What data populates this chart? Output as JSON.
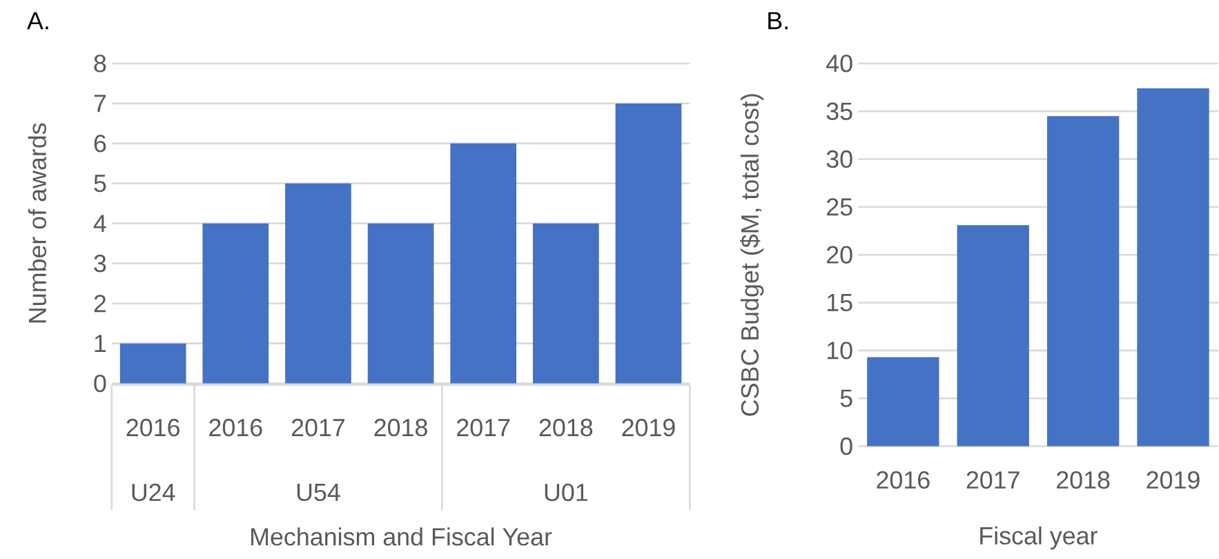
{
  "chart_data": [
    {
      "type": "bar",
      "title": "A.",
      "xlabel": "Mechanism and Fiscal Year",
      "ylabel": "Number of awards",
      "categories": [
        "2016",
        "2016",
        "2017",
        "2018",
        "2017",
        "2018",
        "2019"
      ],
      "values": [
        1,
        4,
        5,
        4,
        6,
        4,
        7
      ],
      "color": "#4472c4",
      "ylim": [
        0,
        8
      ],
      "yticks": [
        0,
        1,
        2,
        3,
        4,
        5,
        6,
        7,
        8
      ],
      "grid": "y",
      "annotations": [
        "U24",
        "U54",
        "U01"
      ]
    },
    {
      "type": "bar",
      "title": "B.",
      "xlabel": "Fiscal year",
      "ylabel": "CSBC Budget ($M, total cost)",
      "categories": [
        "2016",
        "2017",
        "2018",
        "2019"
      ],
      "values": [
        9.3,
        23.1,
        34.5,
        37.4
      ],
      "color": "#4472c4",
      "ylim": [
        0,
        40
      ],
      "yticks": [
        0,
        5,
        10,
        15,
        20,
        25,
        30,
        35,
        40
      ],
      "grid": "y"
    }
  ]
}
